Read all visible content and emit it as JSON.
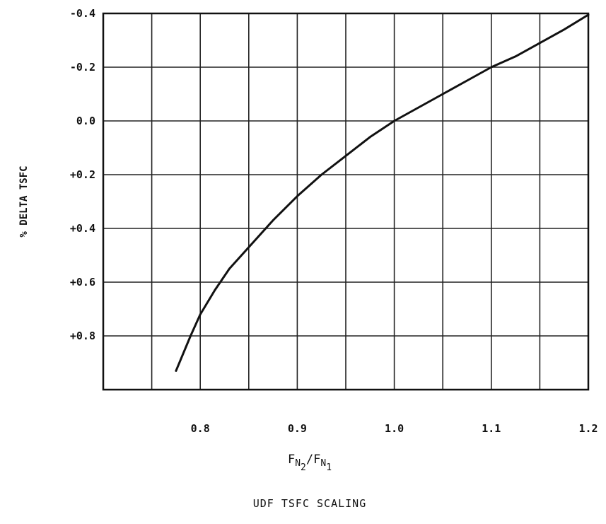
{
  "chart_data": {
    "type": "line",
    "title": "UDF TSFC SCALING",
    "xlabel": {
      "main1": "F",
      "sub1": "N",
      "subsub1": "2",
      "slash": "/",
      "main2": "F",
      "sub2": "N",
      "subsub2": "1"
    },
    "ylabel": "% DELTA TSFC",
    "xlim": [
      0.7,
      1.2
    ],
    "ylim": [
      -0.4,
      1.0
    ],
    "y_inverted": true,
    "grid": true,
    "x_ticks": [
      {
        "value": 0.8,
        "label": "0.8"
      },
      {
        "value": 0.9,
        "label": "0.9"
      },
      {
        "value": 1.0,
        "label": "1.0"
      },
      {
        "value": 1.1,
        "label": "1.1"
      },
      {
        "value": 1.2,
        "label": "1.2"
      }
    ],
    "y_ticks": [
      {
        "value": -0.4,
        "label": "-0.4"
      },
      {
        "value": -0.2,
        "label": "-0.2"
      },
      {
        "value": 0.0,
        "label": "0.0"
      },
      {
        "value": 0.2,
        "label": "+0.2"
      },
      {
        "value": 0.4,
        "label": "+0.4"
      },
      {
        "value": 0.6,
        "label": "+0.6"
      },
      {
        "value": 0.8,
        "label": "+0.8"
      }
    ],
    "series": [
      {
        "x": [
          0.775,
          0.79,
          0.8,
          0.815,
          0.83,
          0.85,
          0.875,
          0.9,
          0.925,
          0.95,
          0.975,
          1.0,
          1.025,
          1.05,
          1.075,
          1.1,
          1.125,
          1.15,
          1.175,
          1.2
        ],
        "y": [
          0.93,
          0.8,
          0.72,
          0.63,
          0.55,
          0.47,
          0.37,
          0.28,
          0.2,
          0.13,
          0.06,
          0.0,
          -0.05,
          -0.1,
          -0.15,
          -0.2,
          -0.24,
          -0.29,
          -0.34,
          -0.395
        ]
      }
    ]
  }
}
